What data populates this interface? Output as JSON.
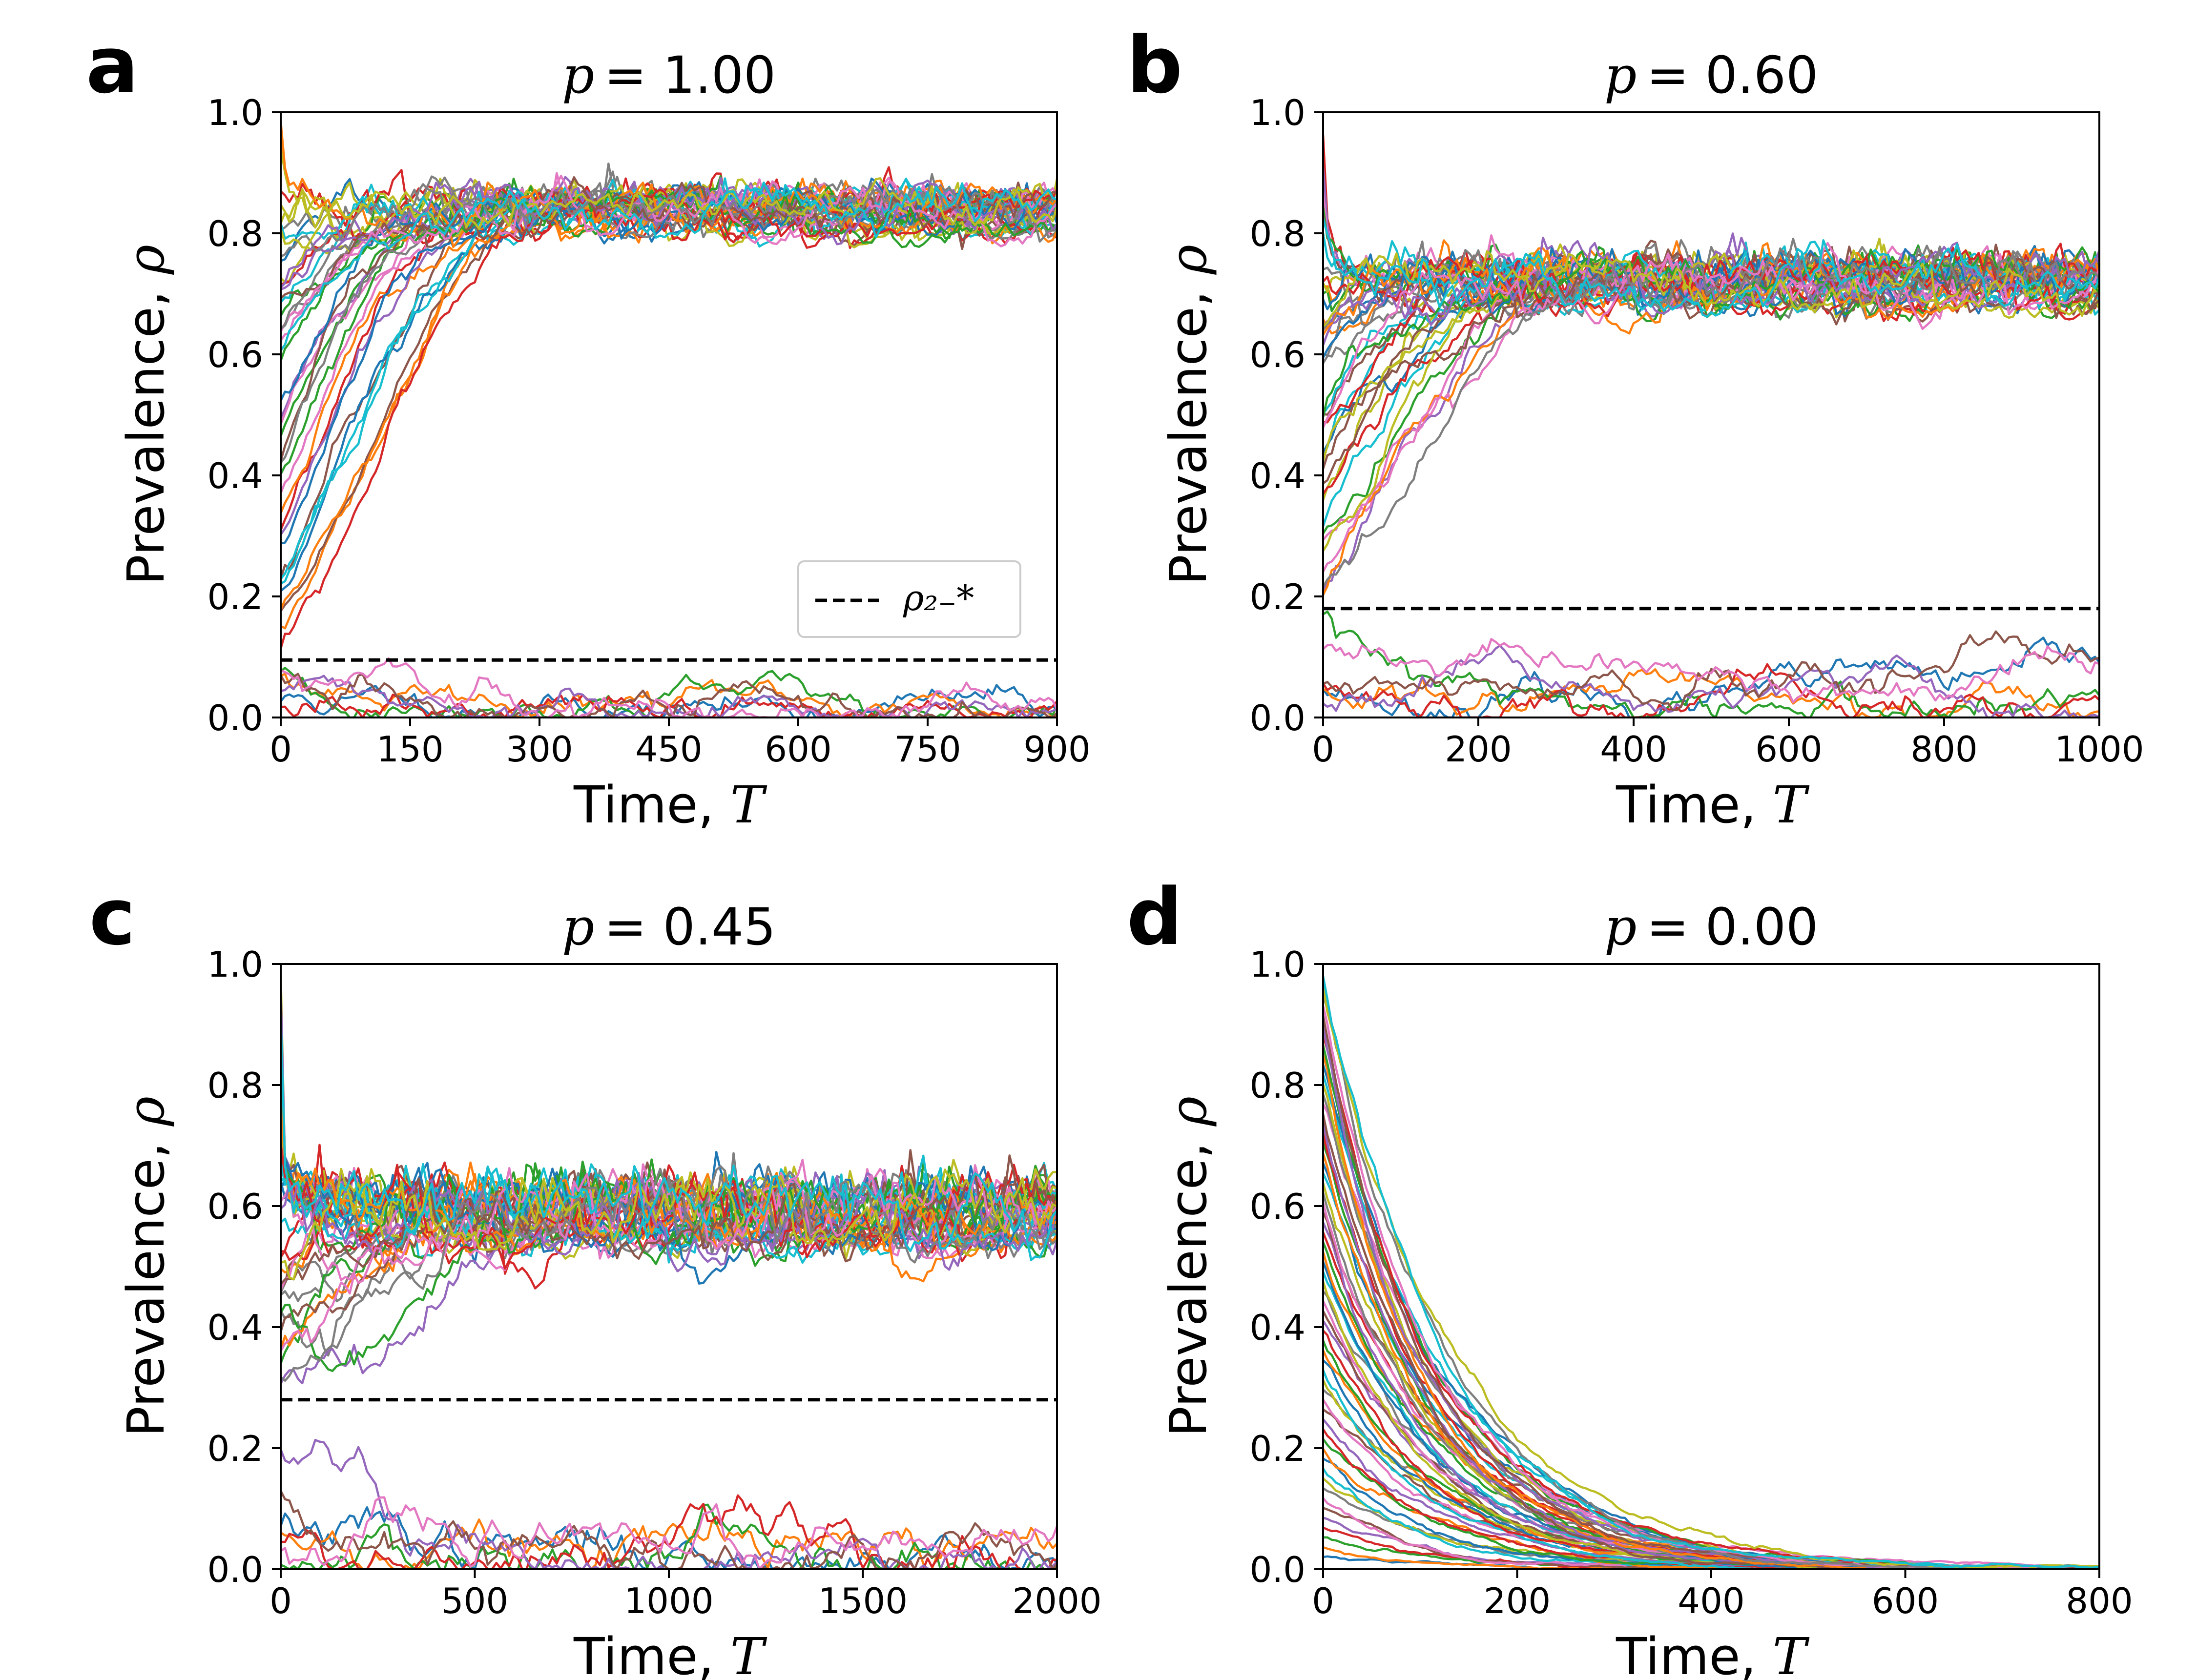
{
  "chart_data": [
    {
      "panel": "a",
      "type": "line",
      "title_var": "p",
      "title_val": "= 1.00",
      "xlabel": "Time, ",
      "xlabel_var": "T",
      "ylabel": "Prevalence, ",
      "ylabel_var": "ρ",
      "xlim": [
        0,
        900
      ],
      "ylim": [
        0,
        1.0
      ],
      "xticks": [
        0,
        150,
        300,
        450,
        600,
        750,
        900
      ],
      "yticks": [
        0.0,
        0.2,
        0.4,
        0.6,
        0.8,
        1.0
      ],
      "threshold": 0.095,
      "plateau": 0.855,
      "noise": 0.012,
      "legend": {
        "label": "ρ₂₋*",
        "position": "lower-right"
      },
      "series_summary": "~50 stochastic trajectories; starts above threshold rise to ~0.855, starts below decay to 0",
      "n_series": 50,
      "seed": 11
    },
    {
      "panel": "b",
      "type": "line",
      "title_var": "p",
      "title_val": "= 0.60",
      "xlabel": "Time, ",
      "xlabel_var": "T",
      "ylabel": "Prevalence, ",
      "ylabel_var": "ρ",
      "xlim": [
        0,
        1000
      ],
      "ylim": [
        0,
        1.0
      ],
      "xticks": [
        0,
        200,
        400,
        600,
        800,
        1000
      ],
      "yticks": [
        0.0,
        0.2,
        0.4,
        0.6,
        0.8,
        1.0
      ],
      "threshold": 0.18,
      "plateau": 0.74,
      "noise": 0.014,
      "series_summary": "~50 stochastic trajectories; starts above threshold converge to ~0.74, starts below decay to 0",
      "n_series": 50,
      "seed": 23
    },
    {
      "panel": "c",
      "type": "line",
      "title_var": "p",
      "title_val": "= 0.45",
      "xlabel": "Time, ",
      "xlabel_var": "T",
      "ylabel": "Prevalence, ",
      "ylabel_var": "ρ",
      "xlim": [
        0,
        2000
      ],
      "ylim": [
        0,
        1.0
      ],
      "xticks": [
        0,
        500,
        1000,
        1500,
        2000
      ],
      "yticks": [
        0.0,
        0.2,
        0.4,
        0.6,
        0.8,
        1.0
      ],
      "threshold": 0.28,
      "plateau": 0.61,
      "noise": 0.02,
      "series_summary": "~50 stochastic trajectories; starts above threshold converge to ~0.61, starts below decay to 0",
      "n_series": 50,
      "seed": 37
    },
    {
      "panel": "d",
      "type": "line",
      "title_var": "p",
      "title_val": "= 0.00",
      "xlabel": "Time, ",
      "xlabel_var": "T",
      "ylabel": "Prevalence, ",
      "ylabel_var": "ρ",
      "xlim": [
        0,
        800
      ],
      "ylim": [
        0,
        1.0
      ],
      "xticks": [
        0,
        200,
        400,
        600,
        800
      ],
      "yticks": [
        0.0,
        0.2,
        0.4,
        0.6,
        0.8,
        1.0
      ],
      "threshold": null,
      "plateau": 0.0,
      "noise": 0.006,
      "series_summary": "~60 stochastic trajectories all decaying exponentially to 0",
      "n_series": 60,
      "seed": 53
    }
  ],
  "colors": [
    "#1f77b4",
    "#ff7f0e",
    "#2ca02c",
    "#d62728",
    "#9467bd",
    "#8c564b",
    "#e377c2",
    "#7f7f7f",
    "#bcbd22",
    "#17becf"
  ],
  "threshold_color": "#000000"
}
